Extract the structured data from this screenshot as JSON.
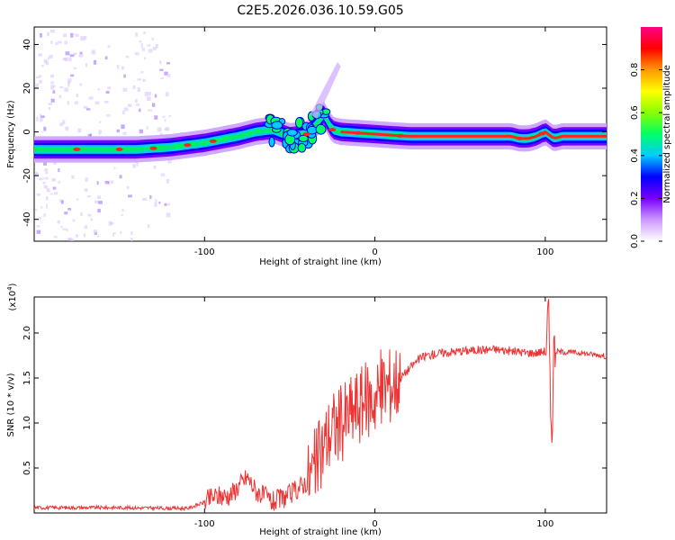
{
  "title": "C2E5.2026.036.10.59.G05",
  "chart_data": [
    {
      "type": "heatmap",
      "xlabel": "Height of straight line (km)",
      "ylabel": "Frequency (Hz)",
      "xlim": [
        -200,
        136
      ],
      "ylim": [
        -50,
        48
      ],
      "x_ticks": [
        -100,
        0,
        100
      ],
      "x_tick_labels": [
        "-100",
        "0",
        "100"
      ],
      "y_ticks": [
        -40,
        -20,
        0,
        20,
        40
      ],
      "y_tick_labels": [
        "-40",
        "-20",
        "0",
        "20",
        "40"
      ],
      "ridge": {
        "x": [
          -200,
          -180,
          -160,
          -140,
          -120,
          -100,
          -80,
          -70,
          -60,
          -50,
          -40,
          -35,
          -30,
          -25,
          -20,
          0,
          20,
          40,
          60,
          80,
          85,
          90,
          95,
          100,
          105,
          110,
          136
        ],
        "y": [
          -8,
          -8,
          -8,
          -8,
          -7,
          -5,
          -2,
          0,
          1,
          -2,
          -1,
          3,
          8,
          1,
          0,
          -1,
          -2,
          -2,
          -2,
          -2,
          -3,
          -3,
          -2,
          0,
          -3,
          -2,
          -2
        ]
      },
      "colorbar": {
        "label": "Normalized spectral amplitude",
        "range": [
          0,
          1
        ],
        "ticks": [
          0,
          0.2,
          0.4,
          0.6,
          0.8
        ],
        "tick_labels": [
          "0.0",
          "0.2",
          "0.4",
          "0.6",
          "0.8"
        ],
        "colors": [
          "#ffffff",
          "#cc99ff",
          "#7700ff",
          "#0000ff",
          "#00ccff",
          "#00ff66",
          "#88ff00",
          "#ffff00",
          "#ff9900",
          "#ff0000",
          "#ff0088"
        ]
      }
    },
    {
      "type": "line",
      "xlabel": "Height of straight line (km)",
      "ylabel": "SNR (10 * v/v)",
      "y_multiplier": "(x10^4)",
      "y_multiplier_base": "(x10",
      "y_multiplier_exp": "4",
      "y_multiplier_close": ")",
      "xlim": [
        -200,
        136
      ],
      "ylim": [
        0,
        2.4
      ],
      "x_ticks": [
        -100,
        0,
        100
      ],
      "x_tick_labels": [
        "-100",
        "0",
        "100"
      ],
      "y_ticks": [
        0.5,
        1.0,
        1.5,
        2.0
      ],
      "y_tick_labels": [
        "0.5",
        "1.0",
        "1.5",
        "2.0"
      ],
      "series": [
        {
          "name": "SNR",
          "color": "#ee3333",
          "x": [
            -200,
            -150,
            -110,
            -100,
            -95,
            -85,
            -75,
            -70,
            -60,
            -50,
            -40,
            -35,
            -30,
            -28,
            -25,
            -20,
            -15,
            -10,
            -5,
            0,
            5,
            10,
            15,
            20,
            25,
            30,
            40,
            50,
            60,
            70,
            80,
            90,
            95,
            100,
            102,
            103,
            104,
            105,
            110,
            120,
            130,
            136
          ],
          "y": [
            0.06,
            0.06,
            0.05,
            0.12,
            0.18,
            0.2,
            0.4,
            0.25,
            0.12,
            0.2,
            0.35,
            0.5,
            0.75,
            0.85,
            0.95,
            1.0,
            1.1,
            1.2,
            1.25,
            1.3,
            1.4,
            1.45,
            1.5,
            1.6,
            1.7,
            1.75,
            1.78,
            1.8,
            1.81,
            1.82,
            1.8,
            1.78,
            1.78,
            1.8,
            2.25,
            1.1,
            1.0,
            1.8,
            1.79,
            1.78,
            1.76,
            1.74
          ]
        }
      ]
    }
  ]
}
